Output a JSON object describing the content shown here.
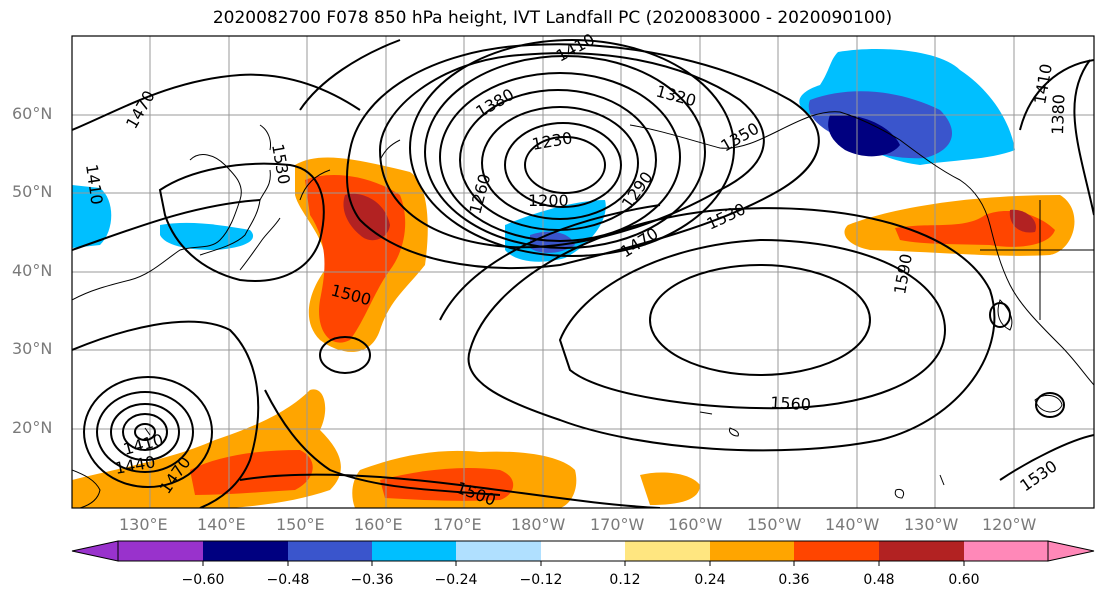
{
  "title": "2020082700 F078 850 hPa height, IVT Landfall PC (2020083000 - 2020090100)",
  "lat_labels": [
    "60°N",
    "50°N",
    "40°N",
    "30°N",
    "20°N"
  ],
  "lon_labels": [
    "130°E",
    "140°E",
    "150°E",
    "160°E",
    "170°E",
    "180°W",
    "170°W",
    "160°W",
    "150°W",
    "140°W",
    "130°W",
    "120°W"
  ],
  "contour_labels": [
    "1410",
    "1320",
    "1380",
    "1230",
    "1350",
    "1470",
    "1530",
    "1260",
    "1290",
    "1200",
    "1470",
    "1530",
    "1590",
    "1500",
    "1560",
    "1410",
    "1440",
    "1470",
    "1500",
    "1410",
    "1380",
    "1530"
  ],
  "colorbar": {
    "ticks": [
      "−0.60",
      "−0.48",
      "−0.36",
      "−0.24",
      "−0.12",
      "0.12",
      "0.24",
      "0.36",
      "0.48",
      "0.60"
    ],
    "colors": [
      "#9932cc",
      "#000080",
      "#3a55cc",
      "#00bfff",
      "#b0e0ff",
      "#ffffff",
      "#ffe680",
      "#ffa500",
      "#ff4500",
      "#b22222",
      "#ff88b8"
    ]
  }
}
